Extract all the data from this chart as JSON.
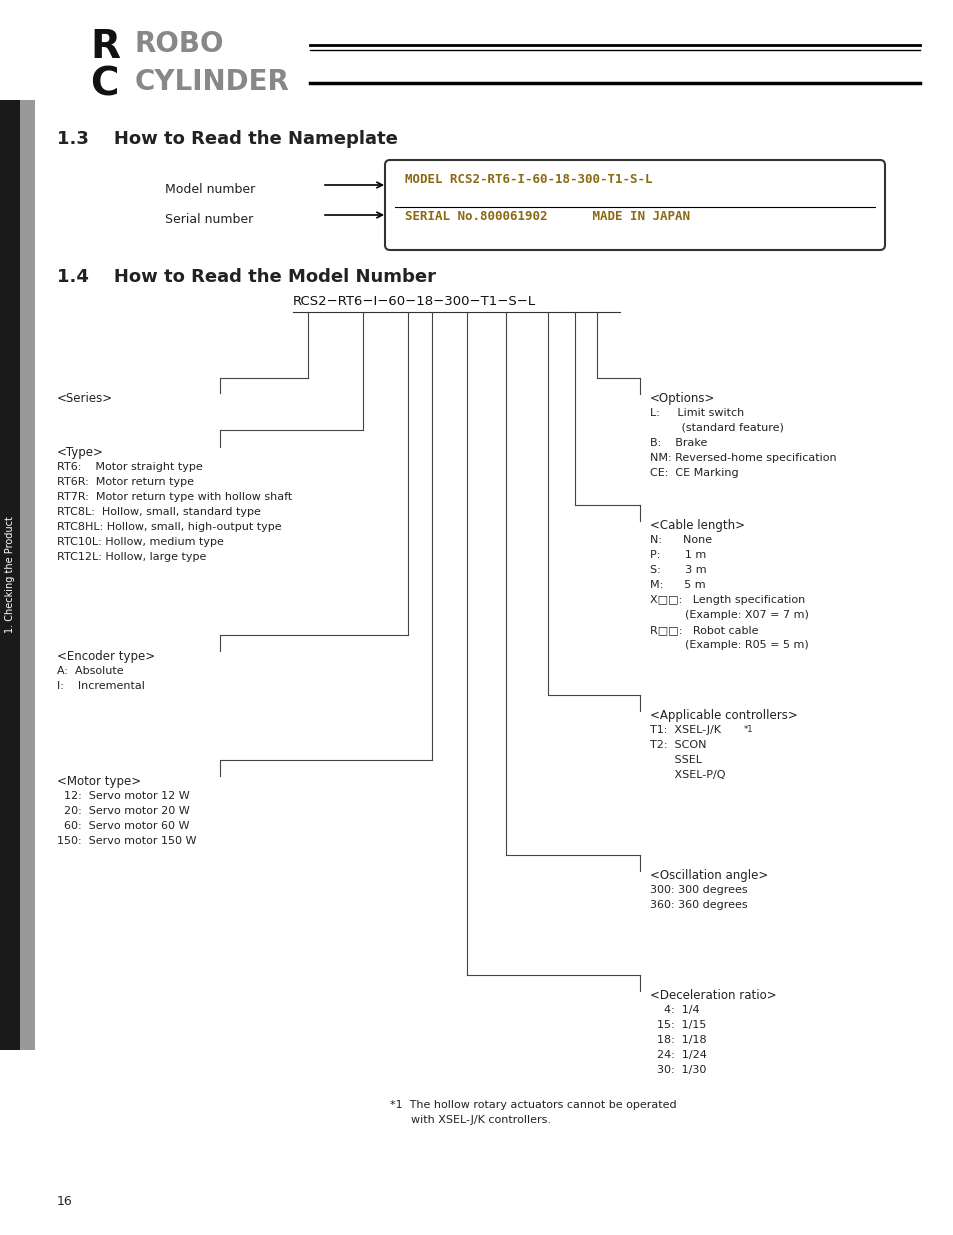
{
  "bg_color": "#ffffff",
  "page_width": 9.54,
  "page_height": 12.35,
  "sidebar_text": "1. Checking the Product",
  "section13_title": "1.3    How to Read the Nameplate",
  "section14_title": "1.4    How to Read the Model Number",
  "nameplate_model": "MODEL RCS2-RT6-I-60-18-300-T1-S-L",
  "nameplate_serial": "SERIAL No.800061902      MADE IN JAPAN",
  "page_number": "16"
}
